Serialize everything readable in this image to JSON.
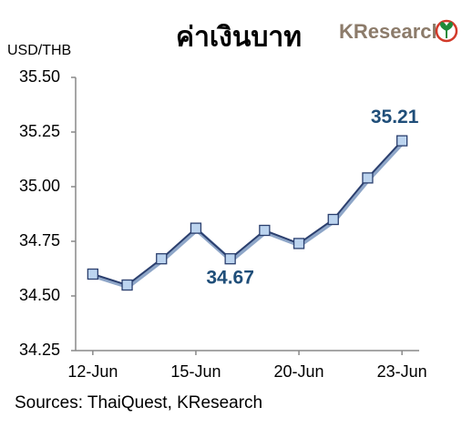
{
  "chart_data": {
    "type": "line",
    "title": "ค่าเงินบาท",
    "logo": "KResearch",
    "y_label": "USD/THB",
    "source": "Sources: ThaiQuest, KResearch",
    "categories": [
      "12-Jun",
      null,
      null,
      "15-Jun",
      null,
      null,
      "20-Jun",
      null,
      null,
      "23-Jun"
    ],
    "series": [
      {
        "name": "USD/THB",
        "color": "#2b3f6e",
        "marker_color": "#bcd4ef",
        "values": [
          34.6,
          34.55,
          34.67,
          34.81,
          34.67,
          34.8,
          34.74,
          34.85,
          35.04,
          35.21
        ],
        "value_labels": [
          null,
          null,
          null,
          null,
          "34.67",
          null,
          null,
          null,
          null,
          "35.21"
        ]
      }
    ],
    "ylim": [
      34.25,
      35.5
    ],
    "yticks": [
      34.25,
      {
        "value": 34.5,
        "label": "34.50"
      },
      34.75,
      {
        "value": 35,
        "label": "35.00"
      },
      35.25,
      {
        "value": 35.5,
        "label": "35.50"
      }
    ],
    "grid": false
  }
}
